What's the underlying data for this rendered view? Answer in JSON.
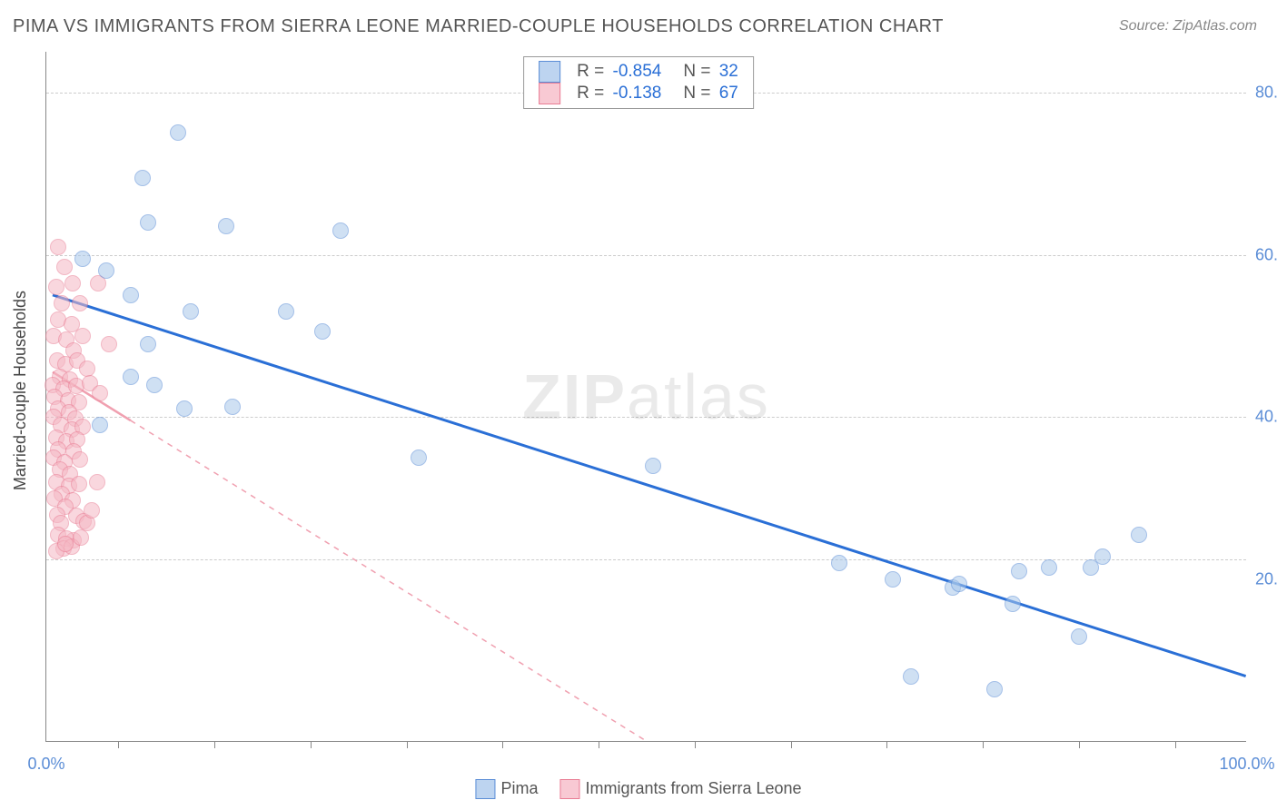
{
  "title": "PIMA VS IMMIGRANTS FROM SIERRA LEONE MARRIED-COUPLE HOUSEHOLDS CORRELATION CHART",
  "source": "Source: ZipAtlas.com",
  "ylabel": "Married-couple Households",
  "watermark_a": "ZIP",
  "watermark_b": "atlas",
  "chart": {
    "type": "scatter",
    "xlim": [
      0,
      100
    ],
    "ylim": [
      0,
      85
    ],
    "y_gridlines": [
      22.5,
      40,
      60,
      80
    ],
    "y_tick_labels": {
      "22.5": "",
      "40": "40.0%",
      "60": "60.0%",
      "80": "80.0%"
    },
    "extra_y_tick": {
      "pos": 20,
      "label": "20.0%"
    },
    "x_ticks_minor": [
      6,
      14,
      22,
      30,
      38,
      46,
      54,
      62,
      70,
      78,
      86,
      94
    ],
    "x_left_label": "0.0%",
    "x_right_label": "100.0%",
    "background": "#ffffff",
    "grid_color": "#cccccc",
    "axis_color": "#888888",
    "label_color": "#5b8dd6",
    "marker_radius": 9,
    "marker_opacity": 0.55
  },
  "series": [
    {
      "name": "Pima",
      "color_fill": "#a8c7ea",
      "color_stroke": "#5b8dd6",
      "swatch_fill": "#bdd4f0",
      "swatch_border": "#5b8dd6",
      "R": "-0.854",
      "N": "32",
      "trend": {
        "x1": 0.5,
        "y1": 55,
        "x2": 100,
        "y2": 8,
        "color": "#2a6fd6",
        "width": 3,
        "dash": "none"
      },
      "points": [
        [
          11,
          75
        ],
        [
          8,
          69.5
        ],
        [
          8.5,
          64
        ],
        [
          15,
          63.5
        ],
        [
          3,
          59.5
        ],
        [
          24.5,
          63
        ],
        [
          5,
          58
        ],
        [
          7,
          55
        ],
        [
          8.5,
          49
        ],
        [
          12,
          53
        ],
        [
          20,
          53
        ],
        [
          23,
          50.5
        ],
        [
          7,
          45
        ],
        [
          9,
          44
        ],
        [
          4.5,
          39
        ],
        [
          11.5,
          41
        ],
        [
          15.5,
          41.3
        ],
        [
          31,
          35
        ],
        [
          50.5,
          34
        ],
        [
          66,
          22
        ],
        [
          70.5,
          20
        ],
        [
          72,
          8
        ],
        [
          75.5,
          19
        ],
        [
          76,
          19.5
        ],
        [
          79,
          6.5
        ],
        [
          80.5,
          17
        ],
        [
          81,
          21
        ],
        [
          86,
          13
        ],
        [
          87,
          21.5
        ],
        [
          88,
          22.8
        ],
        [
          91,
          25.5
        ],
        [
          83.5,
          21.5
        ]
      ]
    },
    {
      "name": "Immigrants from Sierra Leone",
      "color_fill": "#f5b8c4",
      "color_stroke": "#e97d94",
      "swatch_fill": "#f8c9d3",
      "swatch_border": "#e97d94",
      "R": "-0.138",
      "N": "67",
      "trend": {
        "x1": 0.5,
        "y1": 45.5,
        "x2": 50,
        "y2": 0,
        "color": "#f0a0b0",
        "width": 1.5,
        "dash": "6,6",
        "solid_until_x": 7
      },
      "points": [
        [
          1,
          61
        ],
        [
          1.5,
          58.5
        ],
        [
          0.8,
          56
        ],
        [
          2.2,
          56.5
        ],
        [
          1.3,
          54
        ],
        [
          2.8,
          54
        ],
        [
          4.3,
          56.5
        ],
        [
          1,
          52
        ],
        [
          2.1,
          51.5
        ],
        [
          0.6,
          50
        ],
        [
          1.7,
          49.5
        ],
        [
          3,
          50
        ],
        [
          2.3,
          48.2
        ],
        [
          0.9,
          47
        ],
        [
          1.6,
          46.5
        ],
        [
          2.6,
          47
        ],
        [
          3.4,
          46
        ],
        [
          1.1,
          45
        ],
        [
          2,
          44.6
        ],
        [
          0.5,
          44
        ],
        [
          1.4,
          43.5
        ],
        [
          2.5,
          43.8
        ],
        [
          3.6,
          44.2
        ],
        [
          5.2,
          49
        ],
        [
          0.7,
          42.5
        ],
        [
          1.8,
          42
        ],
        [
          2.7,
          41.8
        ],
        [
          1,
          41
        ],
        [
          1.9,
          40.6
        ],
        [
          0.6,
          40
        ],
        [
          2.4,
          39.8
        ],
        [
          1.2,
          39
        ],
        [
          2.1,
          38.5
        ],
        [
          3,
          38.8
        ],
        [
          0.8,
          37.5
        ],
        [
          1.7,
          37
        ],
        [
          2.6,
          37.2
        ],
        [
          1,
          36
        ],
        [
          2.3,
          35.8
        ],
        [
          0.6,
          35
        ],
        [
          1.5,
          34.5
        ],
        [
          2.8,
          34.8
        ],
        [
          4.5,
          43
        ],
        [
          1.1,
          33.5
        ],
        [
          2,
          33
        ],
        [
          0.8,
          32
        ],
        [
          1.9,
          31.5
        ],
        [
          2.7,
          31.8
        ],
        [
          1.3,
          30.5
        ],
        [
          0.7,
          30
        ],
        [
          2.2,
          29.8
        ],
        [
          1.6,
          29
        ],
        [
          0.9,
          28
        ],
        [
          2.5,
          27.8
        ],
        [
          1.2,
          27
        ],
        [
          3.1,
          27.2
        ],
        [
          1,
          25.5
        ],
        [
          2.3,
          24.8
        ],
        [
          1.7,
          25
        ],
        [
          3.4,
          27
        ],
        [
          1.4,
          23.8
        ],
        [
          0.8,
          23.5
        ],
        [
          2.1,
          24
        ],
        [
          1.6,
          24.4
        ],
        [
          2.9,
          25.2
        ],
        [
          3.8,
          28.5
        ],
        [
          4.2,
          32
        ]
      ]
    }
  ],
  "legend_bottom": [
    {
      "series": 0,
      "label": "Pima"
    },
    {
      "series": 1,
      "label": "Immigrants from Sierra Leone"
    }
  ],
  "legend_top_labels": {
    "R": "R =",
    "N": "N ="
  }
}
